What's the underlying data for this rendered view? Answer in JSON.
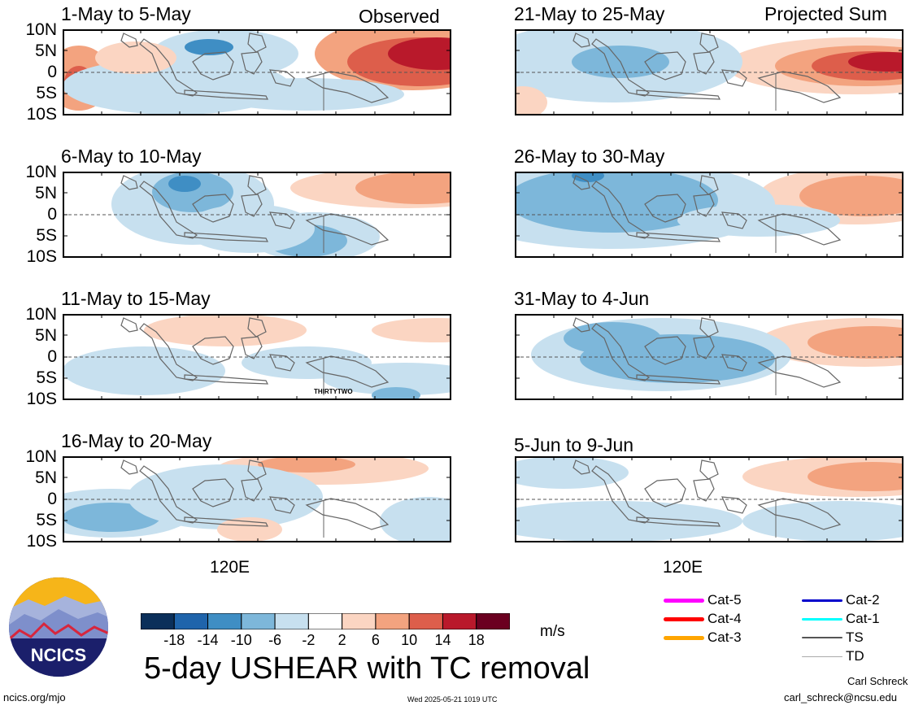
{
  "header": {
    "observed_label": "Observed",
    "projected_label": "Projected Sum"
  },
  "panels": [
    {
      "title": "1-May to 5-May"
    },
    {
      "title": "21-May to 25-May"
    },
    {
      "title": "6-May to 10-May"
    },
    {
      "title": "26-May to 30-May"
    },
    {
      "title": "11-May to 15-May",
      "storm_label": "THIRTYTWO"
    },
    {
      "title": "31-May to 4-Jun"
    },
    {
      "title": "16-May to 20-May"
    },
    {
      "title": "5-Jun to 9-Jun"
    }
  ],
  "y_ticks": [
    "10N",
    "5N",
    "0",
    "5S",
    "10S"
  ],
  "x_label": "120E",
  "colorbar": {
    "ticks": [
      "-18",
      "-14",
      "-10",
      "-6",
      "-2",
      "2",
      "6",
      "10",
      "14",
      "18"
    ],
    "units": "m/s",
    "colors": [
      "#0b2f5a",
      "#1f64ab",
      "#3f8ec4",
      "#7db7da",
      "#c7e0ef",
      "#ffffff",
      "#fbd5c2",
      "#f3a37f",
      "#dd5e4b",
      "#b9192b",
      "#6b0020"
    ]
  },
  "legend": [
    {
      "label": "Cat-5",
      "color": "#ff00ff"
    },
    {
      "label": "Cat-4",
      "color": "#ff0000"
    },
    {
      "label": "Cat-3",
      "color": "#ffa500"
    },
    {
      "label": "Cat-2",
      "color": "#0000cc"
    },
    {
      "label": "Cat-1",
      "color": "#00ffff"
    },
    {
      "label": "TS",
      "color": "#555555"
    },
    {
      "label": "TD",
      "color": "#aaaaaa"
    }
  ],
  "main_title": "5-day USHEAR with TC removal",
  "logo": {
    "text": "NCICS"
  },
  "footer": {
    "url": "ncics.org/mjo",
    "timestamp": "Wed 2025-05-21 1019 UTC",
    "author": "Carl Schreck",
    "email": "carl_schreck@ncsu.edu"
  },
  "chart_data": {
    "type": "heatmap",
    "variable": "5-day USHEAR with TC removal",
    "units": "m/s",
    "x_tick_labels": [
      "120E"
    ],
    "y_tick_labels": [
      "10N",
      "5N",
      "0",
      "5S",
      "10S"
    ],
    "color_levels": [
      -18,
      -14,
      -10,
      -6,
      -2,
      2,
      6,
      10,
      14,
      18
    ],
    "observed_periods": [
      "1-May to 5-May",
      "6-May to 10-May",
      "11-May to 15-May",
      "16-May to 20-May"
    ],
    "projected_periods": [
      "21-May to 25-May",
      "26-May to 30-May",
      "31-May to 4-Jun",
      "5-Jun to 9-Jun"
    ]
  }
}
